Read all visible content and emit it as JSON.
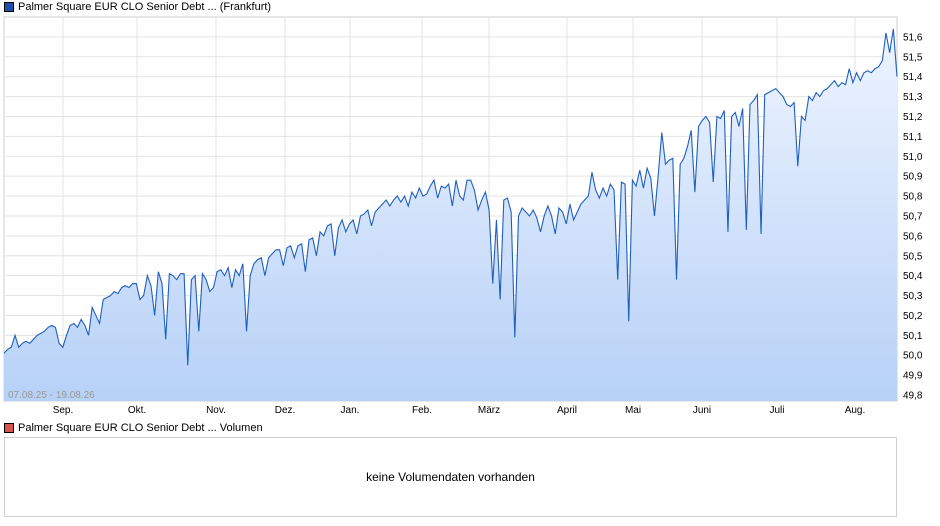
{
  "price_legend": {
    "label": "Palmer Square EUR CLO Senior Debt ... (Frankfurt)",
    "color": "#1f4fa8"
  },
  "volume_legend": {
    "label": "Palmer Square EUR CLO Senior Debt ... Volumen",
    "color": "#d9534f"
  },
  "volume_panel": {
    "message": "keine Volumendaten vorhanden"
  },
  "chart_data": {
    "type": "area",
    "series_color": "#1f5fbf",
    "fill_top": "#eef4ff",
    "fill_bottom": "#b7d1f7",
    "date_range_label": "07.08.25 - 19.08.26",
    "x_labels": [
      "Sep.",
      "Okt.",
      "Nov.",
      "Dez.",
      "Jan.",
      "Feb.",
      "März",
      "April",
      "Mai",
      "Juni",
      "Juli",
      "Aug."
    ],
    "y_ticks": [
      "49,8",
      "49,9",
      "50,0",
      "50,1",
      "50,2",
      "50,3",
      "50,4",
      "50,5",
      "50,6",
      "50,7",
      "50,8",
      "50,9",
      "51,0",
      "51,1",
      "51,2",
      "51,3",
      "51,4",
      "51,5",
      "51,6"
    ],
    "ylim": [
      49.77,
      51.7
    ],
    "grid": true,
    "values": [
      50.01,
      50.03,
      50.04,
      50.1,
      50.04,
      50.06,
      50.07,
      50.06,
      50.08,
      50.1,
      50.11,
      50.12,
      50.14,
      50.15,
      50.14,
      50.06,
      50.04,
      50.1,
      50.15,
      50.16,
      50.14,
      50.18,
      50.15,
      50.1,
      50.24,
      50.2,
      50.16,
      50.28,
      50.29,
      50.3,
      50.32,
      50.31,
      50.34,
      50.35,
      50.34,
      50.36,
      50.36,
      50.28,
      50.3,
      50.4,
      50.35,
      50.2,
      50.42,
      50.36,
      50.08,
      50.41,
      50.4,
      50.38,
      50.41,
      50.41,
      49.95,
      50.38,
      50.4,
      50.12,
      50.41,
      50.38,
      50.32,
      50.34,
      50.42,
      50.43,
      50.4,
      50.44,
      50.34,
      50.43,
      50.4,
      50.46,
      50.12,
      50.4,
      50.46,
      50.48,
      50.49,
      50.4,
      50.49,
      50.51,
      50.53,
      50.53,
      50.45,
      50.54,
      50.55,
      50.49,
      50.55,
      50.56,
      50.42,
      50.58,
      50.59,
      50.5,
      50.62,
      50.6,
      50.65,
      50.66,
      50.5,
      50.64,
      50.68,
      50.62,
      50.66,
      50.68,
      50.61,
      50.7,
      50.71,
      50.73,
      50.65,
      50.72,
      50.74,
      50.76,
      50.78,
      50.75,
      50.78,
      50.8,
      50.77,
      50.8,
      50.75,
      50.82,
      50.79,
      50.84,
      50.8,
      50.81,
      50.85,
      50.88,
      50.79,
      50.85,
      50.84,
      50.86,
      50.75,
      50.88,
      50.8,
      50.78,
      50.88,
      50.88,
      50.83,
      50.73,
      50.78,
      50.82,
      50.73,
      50.36,
      50.68,
      50.28,
      50.78,
      50.79,
      50.72,
      50.09,
      50.7,
      50.74,
      50.72,
      50.7,
      50.73,
      50.69,
      50.62,
      50.7,
      50.75,
      50.7,
      50.61,
      50.74,
      50.72,
      50.66,
      50.76,
      50.68,
      50.72,
      50.76,
      50.78,
      50.8,
      50.92,
      50.83,
      50.79,
      50.84,
      50.8,
      50.86,
      50.83,
      50.38,
      50.87,
      50.86,
      50.17,
      50.88,
      50.85,
      50.93,
      50.84,
      50.94,
      50.89,
      50.7,
      50.9,
      51.12,
      50.96,
      50.98,
      50.99,
      50.38,
      50.96,
      50.99,
      51.05,
      51.13,
      50.82,
      51.15,
      51.18,
      51.2,
      51.17,
      50.87,
      51.2,
      51.19,
      51.23,
      50.62,
      51.2,
      51.22,
      51.15,
      51.24,
      50.63,
      51.26,
      51.28,
      51.31,
      50.61,
      51.31,
      51.32,
      51.33,
      51.34,
      51.32,
      51.3,
      51.26,
      51.25,
      51.27,
      50.95,
      51.2,
      51.18,
      51.3,
      51.28,
      51.32,
      51.3,
      51.33,
      51.34,
      51.36,
      51.38,
      51.35,
      51.37,
      51.36,
      51.44,
      51.37,
      51.42,
      51.38,
      51.42,
      51.43,
      51.42,
      51.44,
      51.45,
      51.48,
      51.62,
      51.52,
      51.64,
      51.4
    ]
  }
}
